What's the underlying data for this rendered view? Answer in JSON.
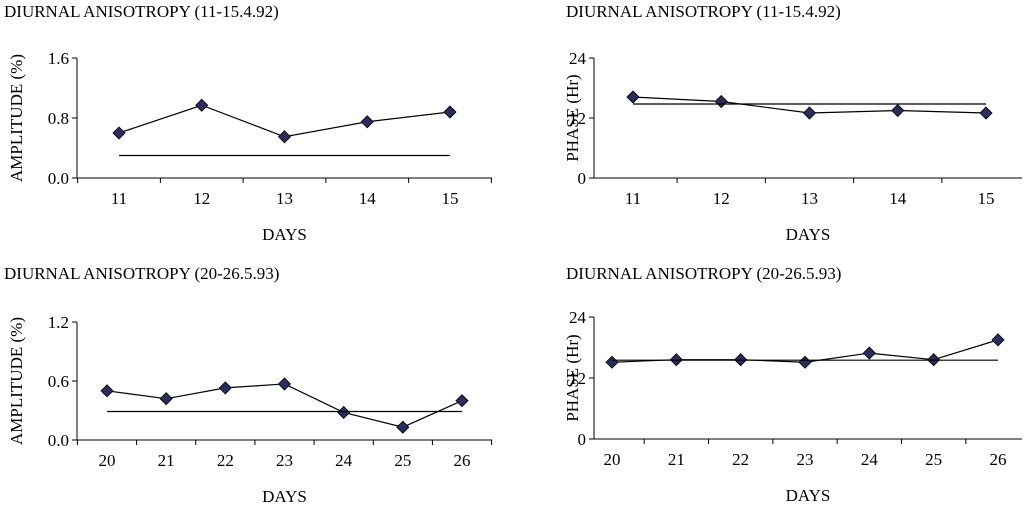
{
  "chart_data": [
    {
      "type": "line",
      "title": "DIURNAL ANISOTROPY (11-15.4.92)",
      "xlabel": "DAYS",
      "ylabel": "AMPLITUDE (%)",
      "categories": [
        "11",
        "12",
        "13",
        "14",
        "15"
      ],
      "y_ticks": [
        "0.0",
        "0.8",
        "1.6"
      ],
      "ylim": [
        0,
        1.6
      ],
      "series": [
        {
          "values": [
            0.6,
            0.97,
            0.55,
            0.75,
            0.88
          ],
          "marker": "diamond",
          "color": "#2b2b5e"
        },
        {
          "values": [
            0.3,
            0.3,
            0.3,
            0.3,
            0.3
          ],
          "marker": "none",
          "color": "#000000"
        }
      ],
      "grid": false
    },
    {
      "type": "line",
      "title": "DIURNAL ANISOTROPY (11-15.4.92)",
      "xlabel": "DAYS",
      "ylabel": "PHASE (Hr)",
      "categories": [
        "11",
        "12",
        "13",
        "14",
        "15"
      ],
      "y_ticks": [
        "0",
        "12",
        "24"
      ],
      "ylim": [
        0,
        24
      ],
      "series": [
        {
          "values": [
            16.2,
            15.3,
            13.0,
            13.5,
            13.0
          ],
          "marker": "diamond",
          "color": "#2b2b5e"
        },
        {
          "values": [
            14.8,
            14.8,
            14.8,
            14.8,
            14.8
          ],
          "marker": "none",
          "color": "#000000"
        }
      ],
      "grid": false
    },
    {
      "type": "line",
      "title": "DIURNAL ANISOTROPY (20-26.5.93)",
      "xlabel": "DAYS",
      "ylabel": "AMPLITUDE (%)",
      "categories": [
        "20",
        "21",
        "22",
        "23",
        "24",
        "25",
        "26"
      ],
      "y_ticks": [
        "0.0",
        "0.6",
        "1.2"
      ],
      "ylim": [
        0,
        1.2
      ],
      "series": [
        {
          "values": [
            0.5,
            0.42,
            0.53,
            0.57,
            0.28,
            0.13,
            0.4
          ],
          "marker": "diamond",
          "color": "#2b2b5e"
        },
        {
          "values": [
            0.29,
            0.29,
            0.29,
            0.29,
            0.29,
            0.29,
            0.29
          ],
          "marker": "none",
          "color": "#000000"
        }
      ],
      "grid": false
    },
    {
      "type": "line",
      "title": "DIURNAL ANISOTROPY (20-26.5.93)",
      "xlabel": "DAYS",
      "ylabel": "PHASE (Hr)",
      "categories": [
        "20",
        "21",
        "22",
        "23",
        "24",
        "25",
        "26"
      ],
      "y_ticks": [
        "0",
        "12",
        "24"
      ],
      "ylim": [
        0,
        24
      ],
      "series": [
        {
          "values": [
            15.1,
            15.6,
            15.6,
            15.1,
            16.9,
            15.6,
            19.5
          ],
          "marker": "diamond",
          "color": "#2b2b5e"
        },
        {
          "values": [
            15.5,
            15.5,
            15.5,
            15.5,
            15.5,
            15.5,
            15.5
          ],
          "marker": "none",
          "color": "#000000"
        }
      ],
      "grid": false
    }
  ]
}
